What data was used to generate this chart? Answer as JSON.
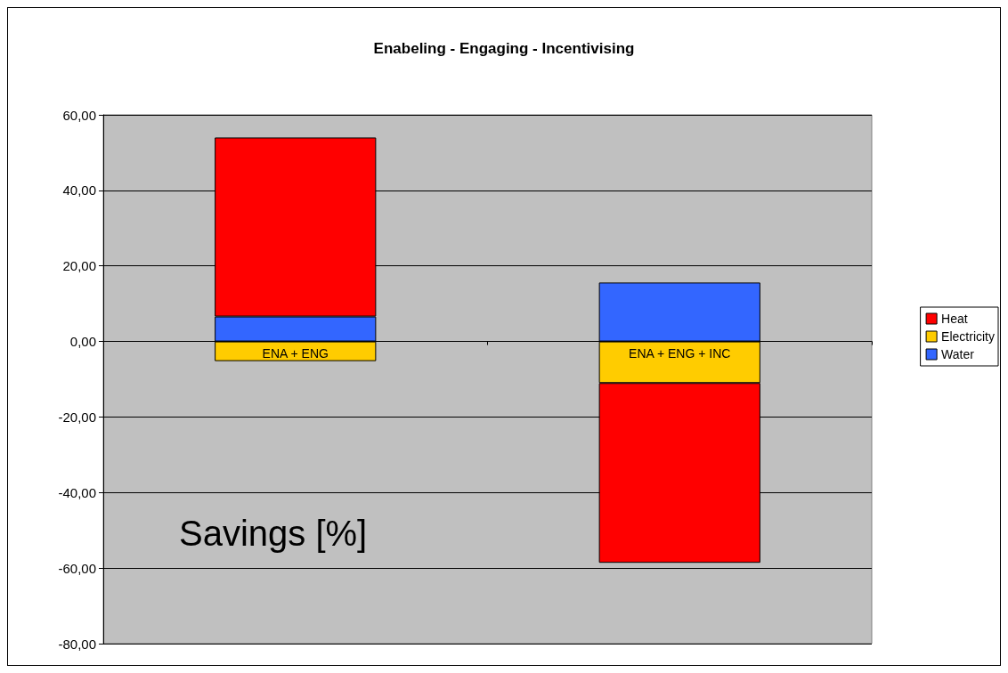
{
  "chart_data": {
    "type": "bar",
    "title": "Enabeling - Engaging - Incentivising",
    "ylabel": "Savings [%]",
    "categories": [
      "ENA + ENG",
      "ENA + ENG + INC"
    ],
    "series": [
      {
        "name": "Water",
        "color": "#3366ff",
        "values": [
          6.6,
          15.6
        ]
      },
      {
        "name": "Electricity",
        "color": "#ffcc00",
        "values": [
          -5.2,
          -11.0
        ]
      },
      {
        "name": "Heat",
        "color": "#ff0000",
        "values": [
          47.4,
          -47.6
        ]
      }
    ],
    "stacked": true,
    "ylim": [
      -80,
      60
    ],
    "yticks": [
      {
        "value": -80,
        "label": "-80,00"
      },
      {
        "value": -60,
        "label": "-60,00"
      },
      {
        "value": -40,
        "label": "-40,00"
      },
      {
        "value": -20,
        "label": "-20,00"
      },
      {
        "value": 0,
        "label": "0,00"
      },
      {
        "value": 20,
        "label": "20,00"
      },
      {
        "value": 40,
        "label": "40,00"
      },
      {
        "value": 60,
        "label": "60,00"
      }
    ],
    "grid": "y",
    "legend": "right"
  }
}
